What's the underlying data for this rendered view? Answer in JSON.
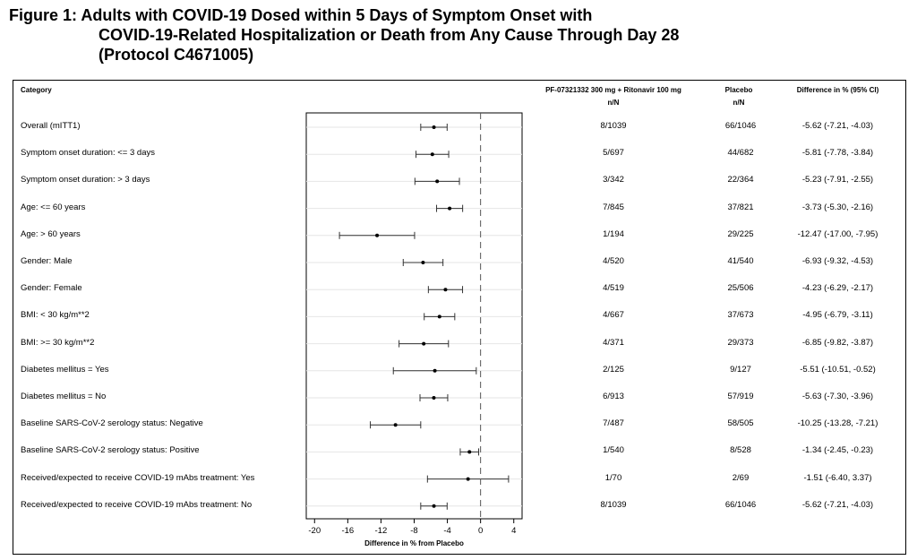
{
  "title": {
    "line1": "Figure 1: Adults with COVID-19 Dosed within 5 Days of Symptom Onset with",
    "line2": "COVID-19-Related Hospitalization or Death from Any Cause Through Day 28",
    "line3": "(Protocol C4671005)"
  },
  "headers": {
    "category": "Category",
    "treatment": "PF-07321332 300 mg + Ritonavir 100 mg",
    "treatment_sub": "n/N",
    "placebo": "Placebo",
    "placebo_sub": "n/N",
    "difference": "Difference in % (95% CI)"
  },
  "chart_data": {
    "type": "forest",
    "xlabel": "Difference in % from Placebo",
    "xlim": [
      -21,
      5
    ],
    "xticks": [
      -20,
      -16,
      -12,
      -8,
      -4,
      0,
      4
    ],
    "reference_line": 0,
    "rows": [
      {
        "category": "Overall (mITT1)",
        "treatment": "8/1039",
        "placebo": "66/1046",
        "diff_text": "-5.62 (-7.21, -4.03)",
        "est": -5.62,
        "lo": -7.21,
        "hi": -4.03
      },
      {
        "category": "Symptom onset duration: <= 3 days",
        "treatment": "5/697",
        "placebo": "44/682",
        "diff_text": "-5.81 (-7.78, -3.84)",
        "est": -5.81,
        "lo": -7.78,
        "hi": -3.84
      },
      {
        "category": "Symptom onset duration: > 3 days",
        "treatment": "3/342",
        "placebo": "22/364",
        "diff_text": "-5.23 (-7.91, -2.55)",
        "est": -5.23,
        "lo": -7.91,
        "hi": -2.55
      },
      {
        "category": "Age: <= 60 years",
        "treatment": "7/845",
        "placebo": "37/821",
        "diff_text": "-3.73 (-5.30, -2.16)",
        "est": -3.73,
        "lo": -5.3,
        "hi": -2.16
      },
      {
        "category": "Age: > 60 years",
        "treatment": "1/194",
        "placebo": "29/225",
        "diff_text": "-12.47 (-17.00, -7.95)",
        "est": -12.47,
        "lo": -17.0,
        "hi": -7.95
      },
      {
        "category": "Gender: Male",
        "treatment": "4/520",
        "placebo": "41/540",
        "diff_text": "-6.93 (-9.32, -4.53)",
        "est": -6.93,
        "lo": -9.32,
        "hi": -4.53
      },
      {
        "category": "Gender: Female",
        "treatment": "4/519",
        "placebo": "25/506",
        "diff_text": "-4.23 (-6.29, -2.17)",
        "est": -4.23,
        "lo": -6.29,
        "hi": -2.17
      },
      {
        "category": "BMI: < 30 kg/m**2",
        "treatment": "4/667",
        "placebo": "37/673",
        "diff_text": "-4.95 (-6.79, -3.11)",
        "est": -4.95,
        "lo": -6.79,
        "hi": -3.11
      },
      {
        "category": "BMI: >= 30 kg/m**2",
        "treatment": "4/371",
        "placebo": "29/373",
        "diff_text": "-6.85 (-9.82, -3.87)",
        "est": -6.85,
        "lo": -9.82,
        "hi": -3.87
      },
      {
        "category": "Diabetes mellitus = Yes",
        "treatment": "2/125",
        "placebo": "9/127",
        "diff_text": "-5.51 (-10.51, -0.52)",
        "est": -5.51,
        "lo": -10.51,
        "hi": -0.52
      },
      {
        "category": "Diabetes mellitus = No",
        "treatment": "6/913",
        "placebo": "57/919",
        "diff_text": "-5.63 (-7.30, -3.96)",
        "est": -5.63,
        "lo": -7.3,
        "hi": -3.96
      },
      {
        "category": "Baseline SARS-CoV-2 serology status: Negative",
        "treatment": "7/487",
        "placebo": "58/505",
        "diff_text": "-10.25 (-13.28, -7.21)",
        "est": -10.25,
        "lo": -13.28,
        "hi": -7.21
      },
      {
        "category": "Baseline SARS-CoV-2 serology status: Positive",
        "treatment": "1/540",
        "placebo": "8/528",
        "diff_text": "-1.34 (-2.45, -0.23)",
        "est": -1.34,
        "lo": -2.45,
        "hi": -0.23
      },
      {
        "category": "Received/expected to receive COVID-19 mAbs treatment: Yes",
        "treatment": "1/70",
        "placebo": "2/69",
        "diff_text": "-1.51 (-6.40, 3.37)",
        "est": -1.51,
        "lo": -6.4,
        "hi": 3.37
      },
      {
        "category": "Received/expected to receive COVID-19 mAbs treatment: No",
        "treatment": "8/1039",
        "placebo": "66/1046",
        "diff_text": "-5.62 (-7.21, -4.03)",
        "est": -5.62,
        "lo": -7.21,
        "hi": -4.03
      }
    ]
  }
}
